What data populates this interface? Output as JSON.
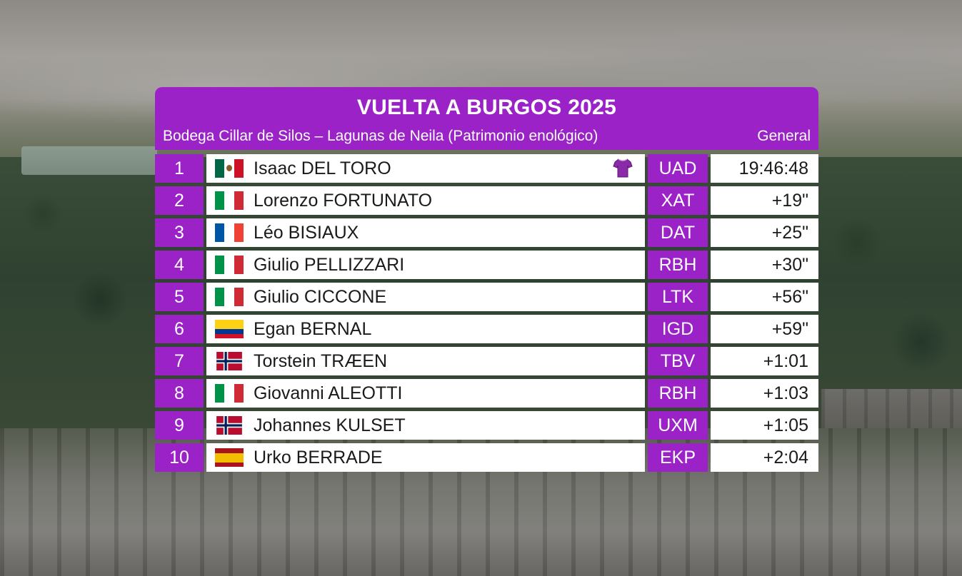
{
  "header": {
    "title": "VUELTA A BURGOS 2025",
    "stage": "Bodega Cillar de Silos – Lagunas de Neila (Patrimonio enológico)",
    "classification": "General"
  },
  "colors": {
    "accent": "#9a22c6",
    "cell": "#ffffff",
    "text": "#1a1a1a"
  },
  "standings": [
    {
      "pos": "1",
      "country": "mexico",
      "rider": "Isaac DEL TORO",
      "team": "UAD",
      "time": "19:46:48",
      "leader_jersey": "jersey-icon"
    },
    {
      "pos": "2",
      "country": "italy",
      "rider": "Lorenzo FORTUNATO",
      "team": "XAT",
      "time": "+19\""
    },
    {
      "pos": "3",
      "country": "france",
      "rider": "Léo BISIAUX",
      "team": "DAT",
      "time": "+25\""
    },
    {
      "pos": "4",
      "country": "italy",
      "rider": "Giulio PELLIZZARI",
      "team": "RBH",
      "time": "+30\""
    },
    {
      "pos": "5",
      "country": "italy",
      "rider": "Giulio CICCONE",
      "team": "LTK",
      "time": "+56\""
    },
    {
      "pos": "6",
      "country": "colombia",
      "rider": "Egan BERNAL",
      "team": "IGD",
      "time": "+59\""
    },
    {
      "pos": "7",
      "country": "norway",
      "rider": "Torstein TRÆEN",
      "team": "TBV",
      "time": "+1:01"
    },
    {
      "pos": "8",
      "country": "italy",
      "rider": "Giovanni ALEOTTI",
      "team": "RBH",
      "time": "+1:03"
    },
    {
      "pos": "9",
      "country": "norway",
      "rider": "Johannes KULSET",
      "team": "UXM",
      "time": "+1:05"
    },
    {
      "pos": "10",
      "country": "spain",
      "rider": "Urko BERRADE",
      "team": "EKP",
      "time": "+2:04"
    }
  ]
}
